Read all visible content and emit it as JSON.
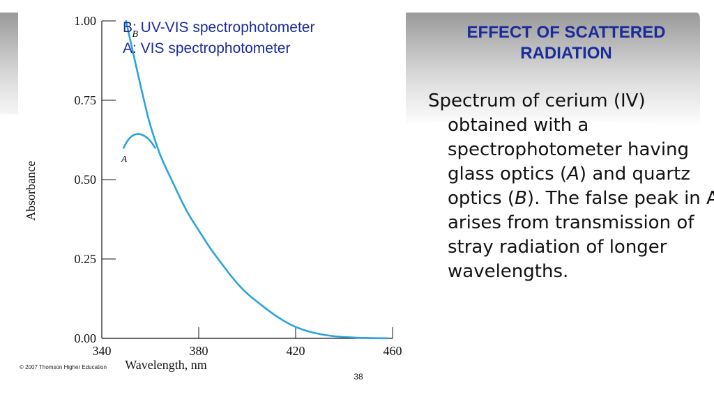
{
  "slide": {
    "title": "EFFECT OF SCATTERED RADIATION",
    "body": {
      "t1": "Spectrum  of cerium (IV) obtained with a spectrophotometer having glass optics (",
      "a": "A",
      "t2": ") and quartz optics (",
      "b": "B",
      "t3": "). The false peak in A arises from transmission of stray radiation of longer wavelengths."
    },
    "page_number": "38",
    "copyright": "© 2007 Thomson Higher Education",
    "colors": {
      "title": "#1a2b9a",
      "legend": "#1a2b9a",
      "curve": "#29a3dc",
      "text": "#111111"
    }
  },
  "chart_data": {
    "type": "line",
    "xlabel": "Wavelength, nm",
    "ylabel": "Absorbance",
    "xlim": [
      340,
      460
    ],
    "ylim": [
      0,
      1.0
    ],
    "x_ticks": [
      "340",
      "380",
      "420",
      "460"
    ],
    "y_ticks": [
      "0.00",
      "0.25",
      "0.50",
      "0.75",
      "1.00"
    ],
    "legend": [
      "B: UV-VIS spectrophotometer",
      "A: VIS spectrophotometer"
    ],
    "series": [
      {
        "name": "B",
        "x": [
          350,
          352,
          355,
          358,
          360,
          363,
          365,
          370,
          375,
          380,
          385,
          390,
          395,
          400,
          405,
          410,
          415,
          420,
          425,
          430,
          435,
          440,
          445,
          450,
          455,
          458
        ],
        "y": [
          1.0,
          0.93,
          0.83,
          0.73,
          0.67,
          0.6,
          0.56,
          0.48,
          0.4,
          0.34,
          0.28,
          0.23,
          0.18,
          0.14,
          0.11,
          0.08,
          0.055,
          0.035,
          0.022,
          0.013,
          0.007,
          0.004,
          0.002,
          0.001,
          0.0005,
          0.0003
        ]
      },
      {
        "name": "A",
        "x": [
          349,
          350,
          351,
          352,
          353,
          354,
          355,
          356,
          357,
          358,
          359,
          360,
          361,
          362
        ],
        "y": [
          0.6,
          0.615,
          0.627,
          0.635,
          0.64,
          0.643,
          0.644,
          0.643,
          0.64,
          0.636,
          0.63,
          0.622,
          0.612,
          0.6
        ]
      }
    ]
  }
}
